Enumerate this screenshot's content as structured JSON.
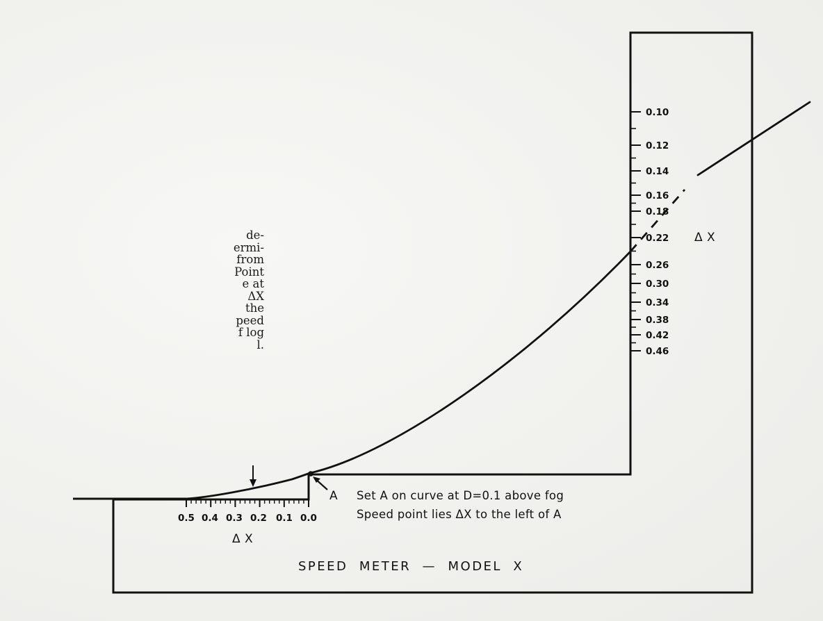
{
  "side_caption_fragments": [
    "de-",
    "ermi-",
    "from",
    "Point",
    "e at",
    "ΔX",
    "the",
    "peed",
    "f log",
    "l."
  ],
  "right_scale": {
    "labels": [
      "0.10",
      "0.12",
      "0.14",
      "0.16",
      "0.18",
      "0.22",
      "0.26",
      "0.30",
      "0.34",
      "0.38",
      "0.42",
      "0.46"
    ],
    "name": "Δ X"
  },
  "bottom_scale": {
    "labels": [
      "0.5",
      "0.4",
      "0.3",
      "0.2",
      "0.1",
      "0.0"
    ],
    "name": "Δ X"
  },
  "point_label": "A",
  "instructions": [
    "Set A on curve at D=0.1 above fog",
    "Speed point lies ΔX to the left of A"
  ],
  "meter_title": "SPEED  METER  —  MODEL  X"
}
